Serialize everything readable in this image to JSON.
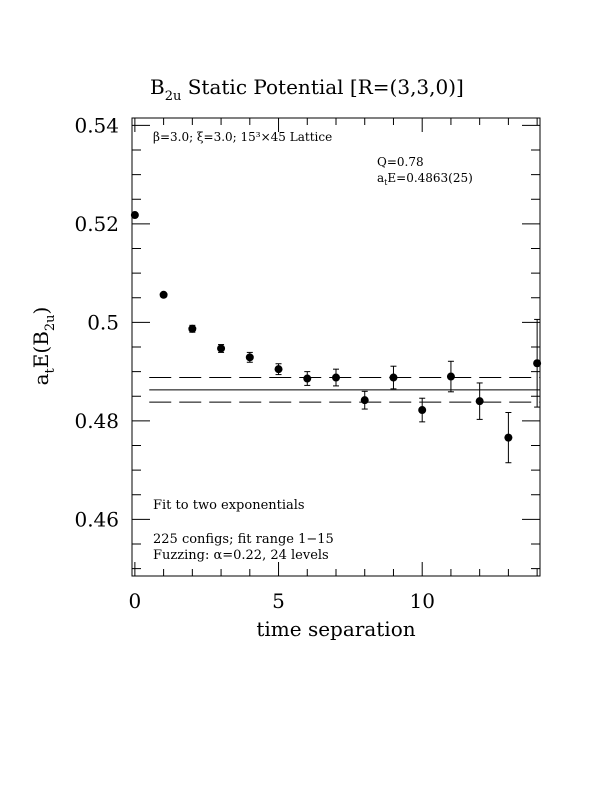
{
  "chart_data": {
    "type": "scatter",
    "title_main": "B",
    "title_sub": "2u",
    "title_rest": " Static Potential [R=(3,3,0)]",
    "xlabel": "time separation",
    "ylabel_main": "a",
    "ylabel_sub1": "t",
    "ylabel_mid": "E(B",
    "ylabel_sub2": "2u",
    "ylabel_end": ")",
    "xlim": [
      -0.1,
      14.1
    ],
    "ylim": [
      0.4485,
      0.5415
    ],
    "xticks": [
      0,
      5,
      10
    ],
    "xtick_labels": [
      "0",
      "5",
      "10"
    ],
    "yticks": [
      0.46,
      0.48,
      0.5,
      0.52,
      0.54
    ],
    "ytick_labels": [
      "0.46",
      "0.48",
      "0.5",
      "0.52",
      "0.54"
    ],
    "grid": false,
    "series": [
      {
        "x": [
          0,
          1,
          2,
          3,
          4,
          5,
          6,
          7,
          8,
          9,
          10,
          11,
          12,
          13,
          14
        ],
        "y": [
          0.5218,
          0.5056,
          0.4987,
          0.4947,
          0.4929,
          0.4905,
          0.4886,
          0.4888,
          0.4842,
          0.4888,
          0.4822,
          0.489,
          0.484,
          0.4766,
          0.4917
        ],
        "err": [
          0.0004,
          0.0004,
          0.0007,
          0.0008,
          0.001,
          0.0011,
          0.0014,
          0.0017,
          0.0018,
          0.0023,
          0.0024,
          0.0031,
          0.0037,
          0.0051,
          0.0089
        ]
      }
    ],
    "fit": {
      "value": 0.4863,
      "error": 0.0025,
      "x_range": [
        0.5,
        14.1
      ]
    },
    "annotations": {
      "lattice": "β=3.0; ξ=3.0; 15³×45 Lattice",
      "q_value": "Q=0.78",
      "energy_main": "a",
      "energy_sub": "t",
      "energy_rest": "E=0.4863(25)",
      "fit_type": "Fit to two exponentials",
      "configs": "225 configs; fit range 1−15",
      "fuzzing": "Fuzzing: α=0.22, 24 levels"
    }
  }
}
